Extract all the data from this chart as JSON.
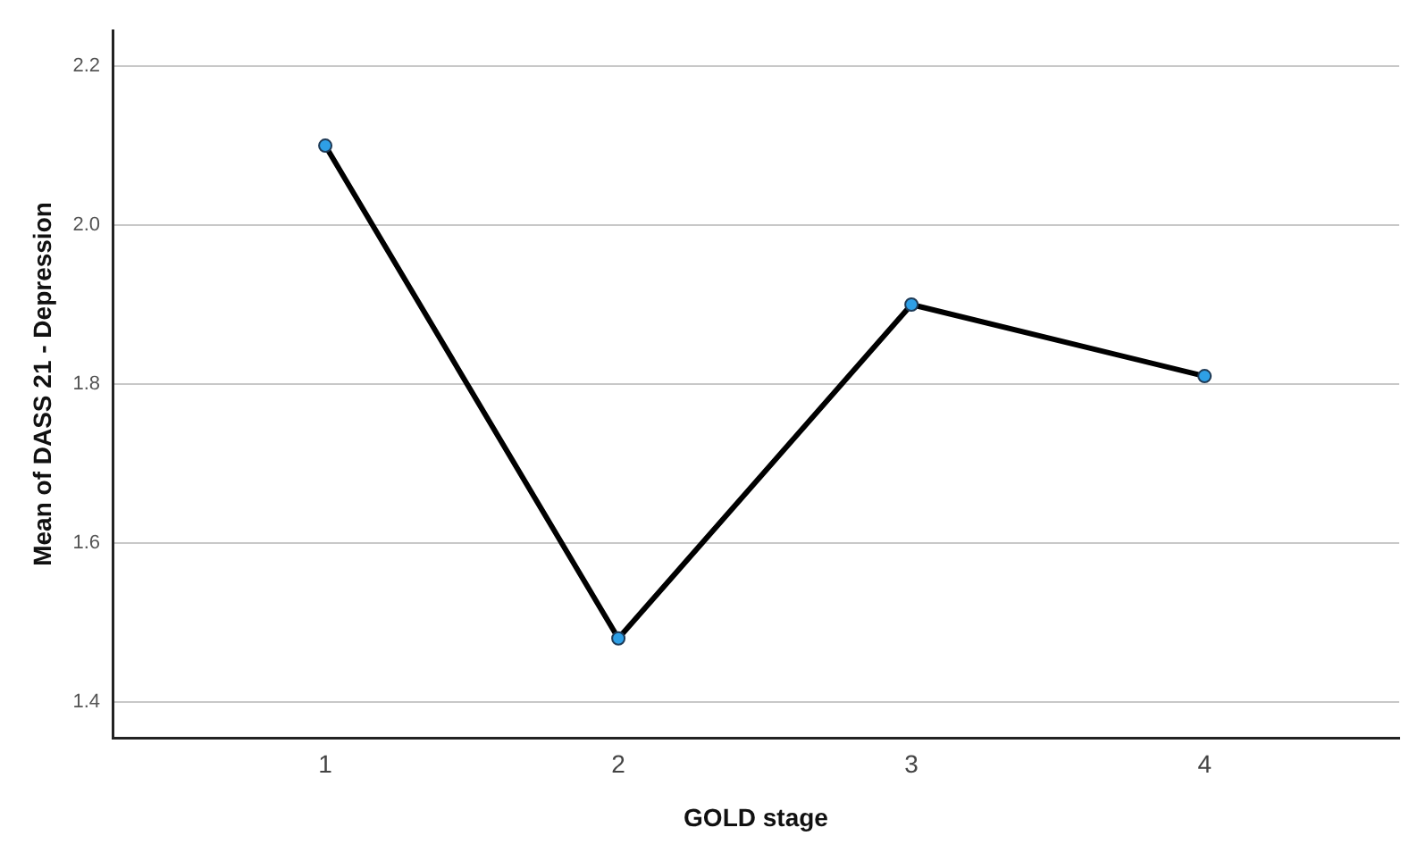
{
  "chart_data": {
    "type": "line",
    "xlabel": "GOLD stage",
    "ylabel": "Mean of DASS 21 - Depression",
    "categories": [
      "1",
      "2",
      "3",
      "4"
    ],
    "series": [
      {
        "color": "#000000",
        "colors": [
          "#2e9fe6",
          "#2e9fe6",
          "#2e9fe6",
          "#2e9fe6"
        ],
        "values": [
          2.1,
          1.48,
          1.9,
          1.81
        ]
      }
    ],
    "ylim": [
      1.355,
      2.245
    ],
    "yticks": [
      1.4,
      1.6,
      1.8,
      {
        "value": 2,
        "label": "2.0"
      },
      2.2
    ],
    "grid": "y",
    "marker": "circle",
    "line_style": "solid"
  }
}
